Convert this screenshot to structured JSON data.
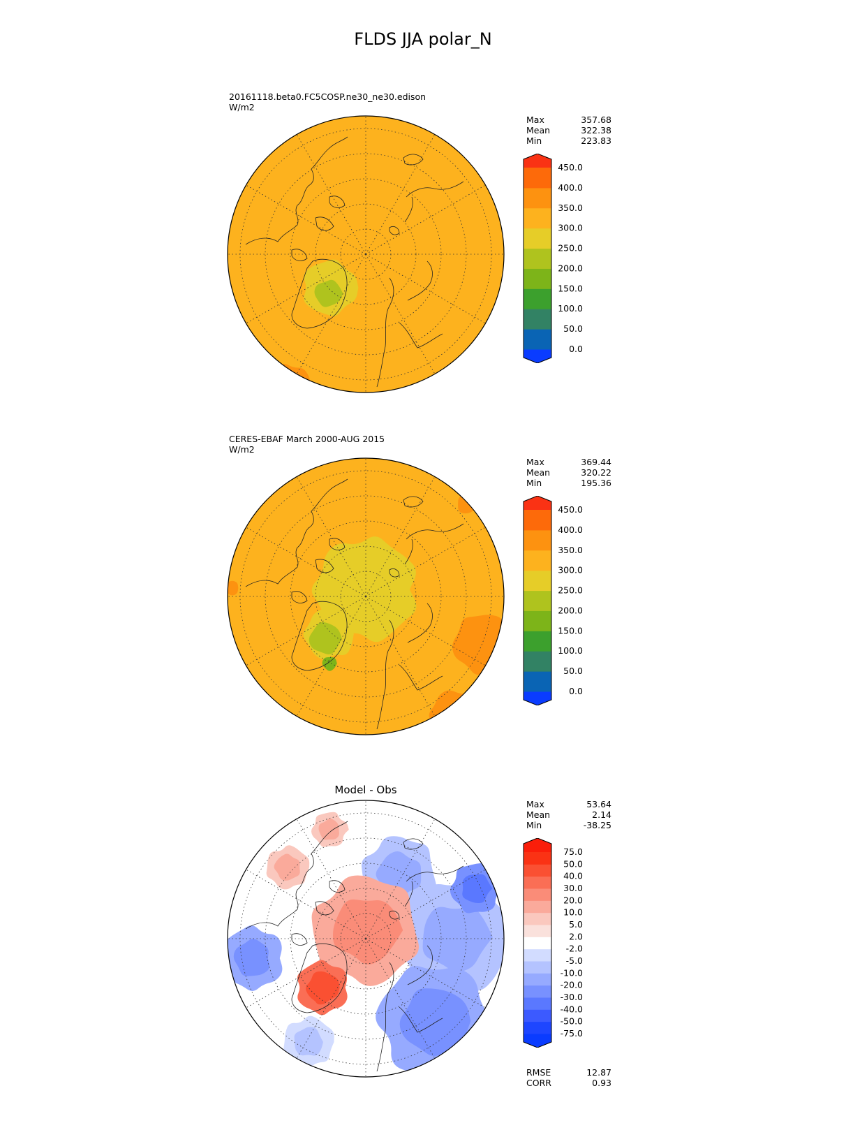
{
  "title": "FLDS JJA polar_N",
  "panels": [
    {
      "title_lines": [
        "20161118.beta0.FC5COSP.ne30_ne30.edison",
        "W/m2"
      ],
      "stats": [
        {
          "label": "Max",
          "value": "357.68"
        },
        {
          "label": "Mean",
          "value": "322.38"
        },
        {
          "label": "Min",
          "value": "223.83"
        }
      ],
      "colorbar_ticks": [
        "450.0",
        "400.0",
        "350.0",
        "300.0",
        "250.0",
        "200.0",
        "150.0",
        "100.0",
        "50.0",
        "0.0"
      ]
    },
    {
      "title_lines": [
        "CERES-EBAF March 2000-AUG 2015",
        "W/m2"
      ],
      "stats": [
        {
          "label": "Max",
          "value": "369.44"
        },
        {
          "label": "Mean",
          "value": "320.22"
        },
        {
          "label": "Min",
          "value": "195.36"
        }
      ],
      "colorbar_ticks": [
        "450.0",
        "400.0",
        "350.0",
        "300.0",
        "250.0",
        "200.0",
        "150.0",
        "100.0",
        "50.0",
        "0.0"
      ]
    },
    {
      "title": "Model - Obs",
      "stats": [
        {
          "label": "Max",
          "value": "53.64"
        },
        {
          "label": "Mean",
          "value": "2.14"
        },
        {
          "label": "Min",
          "value": "-38.25"
        }
      ],
      "colorbar_ticks": [
        "75.0",
        "50.0",
        "40.0",
        "30.0",
        "20.0",
        "10.0",
        "5.0",
        "2.0",
        "-2.0",
        "-5.0",
        "-10.0",
        "-20.0",
        "-30.0",
        "-40.0",
        "-50.0",
        "-75.0"
      ],
      "metrics": [
        {
          "label": "RMSE",
          "value": "12.87"
        },
        {
          "label": "CORR",
          "value": "0.93"
        }
      ]
    }
  ],
  "chart_data": [
    {
      "type": "heatmap",
      "title": "20161118.beta0.FC5COSP.ne30_ne30.edison",
      "projection": "north polar stereographic",
      "units": "W/m2",
      "stats": {
        "max": 357.68,
        "mean": 322.38,
        "min": 223.83
      },
      "levels": [
        0,
        50,
        100,
        150,
        200,
        250,
        300,
        350,
        400,
        450
      ],
      "colors": [
        "#0a3cff",
        "#0a64b4",
        "#328264",
        "#3ca02d",
        "#7db419",
        "#afc31e",
        "#e6cd28",
        "#fdb21e",
        "#fd9210",
        "#fd6a0a",
        "#fa3214"
      ],
      "extend": "both"
    },
    {
      "type": "heatmap",
      "title": "CERES-EBAF March 2000-AUG 2015",
      "projection": "north polar stereographic",
      "units": "W/m2",
      "stats": {
        "max": 369.44,
        "mean": 320.22,
        "min": 195.36
      },
      "levels": [
        0,
        50,
        100,
        150,
        200,
        250,
        300,
        350,
        400,
        450
      ],
      "colors": [
        "#0a3cff",
        "#0a64b4",
        "#328264",
        "#3ca02d",
        "#7db419",
        "#afc31e",
        "#e6cd28",
        "#fdb21e",
        "#fd9210",
        "#fd6a0a",
        "#fa3214"
      ],
      "extend": "both"
    },
    {
      "type": "heatmap",
      "title": "Model - Obs",
      "projection": "north polar stereographic",
      "stats": {
        "max": 53.64,
        "mean": 2.14,
        "min": -38.25,
        "rmse": 12.87,
        "corr": 0.93
      },
      "levels": [
        -75,
        -50,
        -40,
        -30,
        -20,
        -10,
        -5,
        -2,
        2,
        5,
        10,
        20,
        30,
        40,
        50,
        75
      ],
      "colors": [
        "#0a3cff",
        "#1e46ff",
        "#3c5aff",
        "#5a78ff",
        "#7891ff",
        "#96aaff",
        "#b4c3ff",
        "#d2dcff",
        "#ffffff",
        "#fae1dc",
        "#fac8be",
        "#faaa9b",
        "#fa8c78",
        "#fa6e55",
        "#fa5032",
        "#fa3214",
        "#fa1e0a"
      ],
      "extend": "both"
    }
  ]
}
